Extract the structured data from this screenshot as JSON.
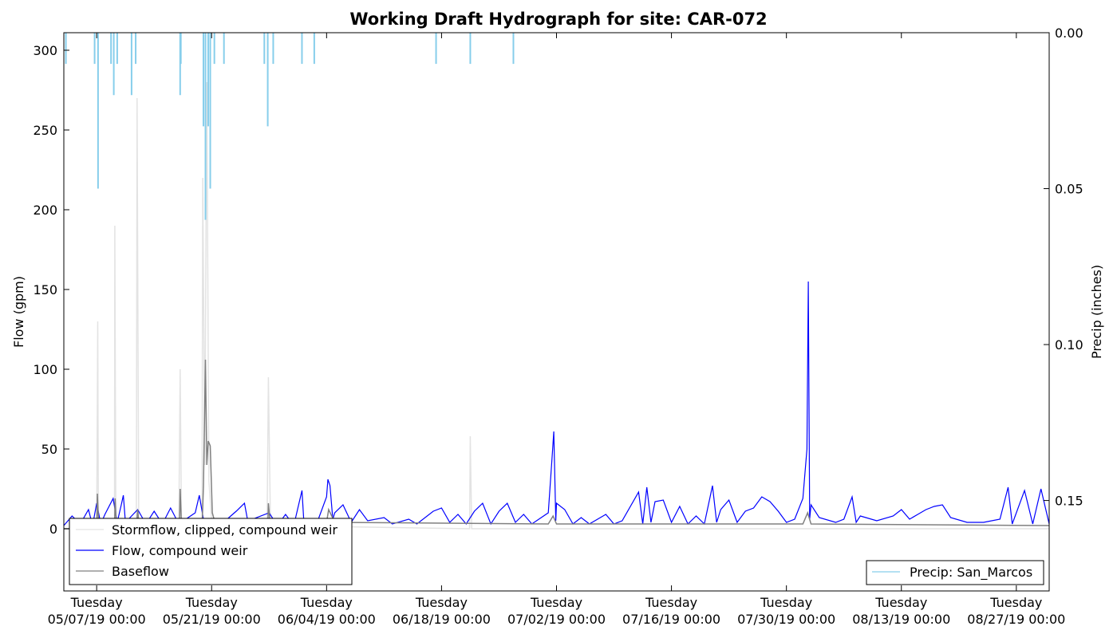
{
  "chart_data": {
    "type": "line",
    "title": "Working Draft Hydrograph for site: CAR-072",
    "ylabel": "Flow (gpm)",
    "y2label": "Precip (inches)",
    "ylim": [
      -39,
      311
    ],
    "y2lim": [
      0.179,
      0.0
    ],
    "y2_inverted": true,
    "yticks": [
      0,
      50,
      100,
      150,
      200,
      250,
      300
    ],
    "ytick_labels": [
      "0",
      "50",
      "100",
      "150",
      "200",
      "250",
      "300"
    ],
    "y2ticks": [
      0.0,
      0.05,
      0.1,
      0.15
    ],
    "y2tick_labels": [
      "0.00",
      "0.05",
      "0.10",
      "0.15"
    ],
    "xlim": [
      "2019-05-03",
      "2019-08-31"
    ],
    "xticks": [
      "2019-05-07",
      "2019-05-21",
      "2019-06-04",
      "2019-06-18",
      "2019-07-02",
      "2019-07-16",
      "2019-07-30",
      "2019-08-13",
      "2019-08-27"
    ],
    "xtick_labels": [
      [
        "Tuesday",
        "05/07/19 00:00"
      ],
      [
        "Tuesday",
        "05/21/19 00:00"
      ],
      [
        "Tuesday",
        "06/04/19 00:00"
      ],
      [
        "Tuesday",
        "06/18/19 00:00"
      ],
      [
        "Tuesday",
        "07/02/19 00:00"
      ],
      [
        "Tuesday",
        "07/16/19 00:00"
      ],
      [
        "Tuesday",
        "07/30/19 00:00"
      ],
      [
        "Tuesday",
        "08/13/19 00:00"
      ],
      [
        "Tuesday",
        "08/27/19 00:00"
      ]
    ],
    "legend_left": {
      "placement": "lower-left",
      "entries": [
        {
          "name": "Stormflow, clipped, compound weir",
          "color": "#e3e3e3"
        },
        {
          "name": "Flow, compound weir",
          "color": "#0000ff"
        },
        {
          "name": "Baseflow",
          "color": "#808080"
        }
      ]
    },
    "legend_right": {
      "placement": "lower-right",
      "entries": [
        {
          "name": "Precip: San_Marcos",
          "color": "#87ceeb"
        }
      ]
    },
    "series": [
      {
        "name": "Stormflow, clipped, compound weir",
        "color": "#e3e3e3",
        "points": [
          [
            "2019-05-03",
            0
          ],
          [
            "2019-05-06",
            0
          ],
          [
            "2019-05-07",
            0
          ],
          [
            "2019-05-07 03:00",
            130
          ],
          [
            "2019-05-07 05:00",
            2
          ],
          [
            "2019-05-09 04:00",
            0
          ],
          [
            "2019-05-09 05:00",
            190
          ],
          [
            "2019-05-09 08:00",
            2
          ],
          [
            "2019-05-11 20:00",
            0
          ],
          [
            "2019-05-11 22:00",
            270
          ],
          [
            "2019-05-12 03:00",
            2
          ],
          [
            "2019-05-17 00:00",
            0
          ],
          [
            "2019-05-17 04:00",
            100
          ],
          [
            "2019-05-17 08:00",
            2
          ],
          [
            "2019-05-19 20:00",
            0
          ],
          [
            "2019-05-19 22:00",
            220
          ],
          [
            "2019-05-20 04:00",
            40
          ],
          [
            "2019-05-20 10:00",
            280
          ],
          [
            "2019-05-20 16:00",
            30
          ],
          [
            "2019-05-21 00:00",
            5
          ],
          [
            "2019-05-27 18:00",
            0
          ],
          [
            "2019-05-27 22:00",
            95
          ],
          [
            "2019-05-28 04:00",
            2
          ],
          [
            "2019-06-21 10:00",
            0
          ],
          [
            "2019-06-21 12:00",
            58
          ],
          [
            "2019-06-21 16:00",
            0
          ],
          [
            "2019-08-31",
            0
          ]
        ]
      },
      {
        "name": "Flow, compound weir",
        "color": "#0000ff",
        "points": [
          [
            "2019-05-03",
            2
          ],
          [
            "2019-05-04",
            8
          ],
          [
            "2019-05-05",
            3
          ],
          [
            "2019-05-06",
            12
          ],
          [
            "2019-05-06 12:00",
            2
          ],
          [
            "2019-05-07",
            16
          ],
          [
            "2019-05-07 12:00",
            3
          ],
          [
            "2019-05-08",
            9
          ],
          [
            "2019-05-09",
            19
          ],
          [
            "2019-05-09 12:00",
            4
          ],
          [
            "2019-05-10",
            15
          ],
          [
            "2019-05-10 06:00",
            21
          ],
          [
            "2019-05-10 12:00",
            4
          ],
          [
            "2019-05-12",
            12
          ],
          [
            "2019-05-13",
            3
          ],
          [
            "2019-05-14",
            11
          ],
          [
            "2019-05-15",
            3
          ],
          [
            "2019-05-16",
            13
          ],
          [
            "2019-05-17",
            3
          ],
          [
            "2019-05-19",
            10
          ],
          [
            "2019-05-19 12:00",
            21
          ],
          [
            "2019-05-20",
            6
          ],
          [
            "2019-05-21",
            5
          ],
          [
            "2019-05-22",
            2
          ],
          [
            "2019-05-24",
            11
          ],
          [
            "2019-05-25",
            16
          ],
          [
            "2019-05-25 12:00",
            2
          ],
          [
            "2019-05-26",
            6
          ],
          [
            "2019-05-28",
            10
          ],
          [
            "2019-05-29",
            2
          ],
          [
            "2019-05-30",
            9
          ],
          [
            "2019-05-31",
            2
          ],
          [
            "2019-06-01",
            24
          ],
          [
            "2019-06-01 06:00",
            3
          ],
          [
            "2019-06-02",
            4
          ],
          [
            "2019-06-03",
            6
          ],
          [
            "2019-06-04",
            20
          ],
          [
            "2019-06-04 04:00",
            31
          ],
          [
            "2019-06-04 10:00",
            27
          ],
          [
            "2019-06-04 18:00",
            6
          ],
          [
            "2019-06-05",
            10
          ],
          [
            "2019-06-06",
            15
          ],
          [
            "2019-06-07",
            4
          ],
          [
            "2019-06-08",
            12
          ],
          [
            "2019-06-09",
            5
          ],
          [
            "2019-06-11",
            7
          ],
          [
            "2019-06-12",
            3
          ],
          [
            "2019-06-14",
            6
          ],
          [
            "2019-06-15",
            3
          ],
          [
            "2019-06-17",
            11
          ],
          [
            "2019-06-18",
            13
          ],
          [
            "2019-06-19",
            4
          ],
          [
            "2019-06-20",
            9
          ],
          [
            "2019-06-21",
            3
          ],
          [
            "2019-06-22",
            11
          ],
          [
            "2019-06-23",
            16
          ],
          [
            "2019-06-24",
            3
          ],
          [
            "2019-06-25",
            11
          ],
          [
            "2019-06-26",
            16
          ],
          [
            "2019-06-27",
            4
          ],
          [
            "2019-06-28",
            9
          ],
          [
            "2019-06-29",
            3
          ],
          [
            "2019-07-01",
            10
          ],
          [
            "2019-07-01 12:00",
            48
          ],
          [
            "2019-07-01 16:00",
            61
          ],
          [
            "2019-07-01 22:00",
            5
          ],
          [
            "2019-07-02",
            16
          ],
          [
            "2019-07-03",
            12
          ],
          [
            "2019-07-04",
            3
          ],
          [
            "2019-07-05",
            7
          ],
          [
            "2019-07-06",
            3
          ],
          [
            "2019-07-08",
            9
          ],
          [
            "2019-07-09",
            3
          ],
          [
            "2019-07-10",
            5
          ],
          [
            "2019-07-12",
            23
          ],
          [
            "2019-07-12 12:00",
            3
          ],
          [
            "2019-07-13",
            26
          ],
          [
            "2019-07-13 12:00",
            4
          ],
          [
            "2019-07-14",
            17
          ],
          [
            "2019-07-15",
            18
          ],
          [
            "2019-07-16",
            4
          ],
          [
            "2019-07-17",
            14
          ],
          [
            "2019-07-18",
            3
          ],
          [
            "2019-07-19",
            8
          ],
          [
            "2019-07-20",
            3
          ],
          [
            "2019-07-21",
            27
          ],
          [
            "2019-07-21 12:00",
            4
          ],
          [
            "2019-07-22",
            12
          ],
          [
            "2019-07-23",
            18
          ],
          [
            "2019-07-24",
            4
          ],
          [
            "2019-07-25",
            11
          ],
          [
            "2019-07-26",
            13
          ],
          [
            "2019-07-27",
            20
          ],
          [
            "2019-07-28",
            17
          ],
          [
            "2019-07-29",
            11
          ],
          [
            "2019-07-30",
            4
          ],
          [
            "2019-07-31",
            6
          ],
          [
            "2019-08-01",
            19
          ],
          [
            "2019-08-01 12:00",
            50
          ],
          [
            "2019-08-01 16:00",
            155
          ],
          [
            "2019-08-01 20:00",
            6
          ],
          [
            "2019-08-02",
            15
          ],
          [
            "2019-08-03",
            7
          ],
          [
            "2019-08-05",
            4
          ],
          [
            "2019-08-06",
            6
          ],
          [
            "2019-08-07",
            20
          ],
          [
            "2019-08-07 12:00",
            4
          ],
          [
            "2019-08-08",
            8
          ],
          [
            "2019-08-10",
            5
          ],
          [
            "2019-08-12",
            8
          ],
          [
            "2019-08-13",
            12
          ],
          [
            "2019-08-14",
            6
          ],
          [
            "2019-08-15",
            9
          ],
          [
            "2019-08-16",
            12
          ],
          [
            "2019-08-17",
            14
          ],
          [
            "2019-08-18",
            15
          ],
          [
            "2019-08-19",
            7
          ],
          [
            "2019-08-21",
            4
          ],
          [
            "2019-08-23",
            4
          ],
          [
            "2019-08-25",
            6
          ],
          [
            "2019-08-26",
            26
          ],
          [
            "2019-08-26 12:00",
            3
          ],
          [
            "2019-08-28",
            24
          ],
          [
            "2019-08-29",
            3
          ],
          [
            "2019-08-30",
            25
          ],
          [
            "2019-08-31",
            3
          ]
        ]
      },
      {
        "name": "Baseflow",
        "color": "#808080",
        "points": [
          [
            "2019-05-03",
            0
          ],
          [
            "2019-05-06",
            0
          ],
          [
            "2019-05-07",
            0
          ],
          [
            "2019-05-07 02:00",
            22
          ],
          [
            "2019-05-07 06:00",
            2
          ],
          [
            "2019-05-09 04:00",
            0
          ],
          [
            "2019-05-09 06:00",
            19
          ],
          [
            "2019-05-09 10:00",
            2
          ],
          [
            "2019-05-11 20:00",
            0
          ],
          [
            "2019-05-12 00:00",
            12
          ],
          [
            "2019-05-12 04:00",
            1
          ],
          [
            "2019-05-17 02:00",
            0
          ],
          [
            "2019-05-17 04:00",
            25
          ],
          [
            "2019-05-17 08:00",
            2
          ],
          [
            "2019-05-19 20:00",
            0
          ],
          [
            "2019-05-20 00:00",
            27
          ],
          [
            "2019-05-20 06:00",
            106
          ],
          [
            "2019-05-20 10:00",
            40
          ],
          [
            "2019-05-20 14:00",
            55
          ],
          [
            "2019-05-20 20:00",
            52
          ],
          [
            "2019-05-21 02:00",
            10
          ],
          [
            "2019-05-21 12:00",
            2
          ],
          [
            "2019-05-27 20:00",
            0
          ],
          [
            "2019-05-27 22:00",
            16
          ],
          [
            "2019-05-28 04:00",
            1
          ],
          [
            "2019-06-04",
            4
          ],
          [
            "2019-06-04 06:00",
            12
          ],
          [
            "2019-06-05",
            4
          ],
          [
            "2019-07-01",
            3
          ],
          [
            "2019-07-01 14:00",
            8
          ],
          [
            "2019-07-02",
            3
          ],
          [
            "2019-08-01",
            3
          ],
          [
            "2019-08-01 14:00",
            10
          ],
          [
            "2019-08-02",
            3
          ],
          [
            "2019-08-31",
            2
          ]
        ]
      },
      {
        "name": "Precip: San_Marcos",
        "color": "#87ceeb",
        "axis": "right",
        "points": [
          [
            "2019-05-03 06:00",
            0.01
          ],
          [
            "2019-05-06 18:00",
            0.01
          ],
          [
            "2019-05-07 04:00",
            0.05
          ],
          [
            "2019-05-08 18:00",
            0.01
          ],
          [
            "2019-05-09 02:00",
            0.02
          ],
          [
            "2019-05-09 12:00",
            0.01
          ],
          [
            "2019-05-11 06:00",
            0.02
          ],
          [
            "2019-05-11 18:00",
            0.01
          ],
          [
            "2019-05-17 04:00",
            0.02
          ],
          [
            "2019-05-17 06:00",
            0.01
          ],
          [
            "2019-05-20 00:00",
            0.03
          ],
          [
            "2019-05-20 06:00",
            0.06
          ],
          [
            "2019-05-20 14:00",
            0.03
          ],
          [
            "2019-05-20 20:00",
            0.05
          ],
          [
            "2019-05-21 08:00",
            0.01
          ],
          [
            "2019-05-22 12:00",
            0.01
          ],
          [
            "2019-05-27 10:00",
            0.01
          ],
          [
            "2019-05-27 20:00",
            0.03
          ],
          [
            "2019-05-28 12:00",
            0.01
          ],
          [
            "2019-06-01 00:00",
            0.01
          ],
          [
            "2019-06-02 12:00",
            0.01
          ],
          [
            "2019-06-17 08:00",
            0.01
          ],
          [
            "2019-06-21 12:00",
            0.01
          ],
          [
            "2019-06-26 18:00",
            0.01
          ]
        ]
      }
    ]
  }
}
